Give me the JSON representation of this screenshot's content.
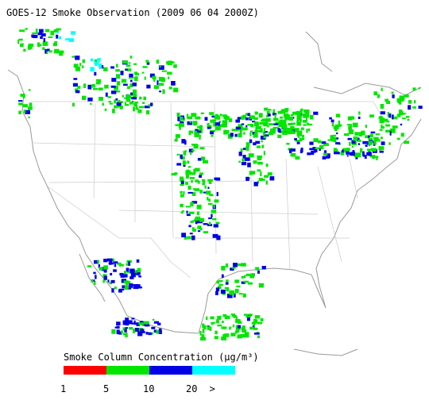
{
  "title": "GOES-12 Smoke Observation (2009 06 04  2000Z)",
  "legend": {
    "title": "Smoke Column Concentration (μg/m³)",
    "colors": [
      "#ff0000",
      "#00e600",
      "#0000e6",
      "#00ffff"
    ],
    "ticks": [
      1,
      5,
      10,
      20
    ],
    "open_end": ">"
  }
}
